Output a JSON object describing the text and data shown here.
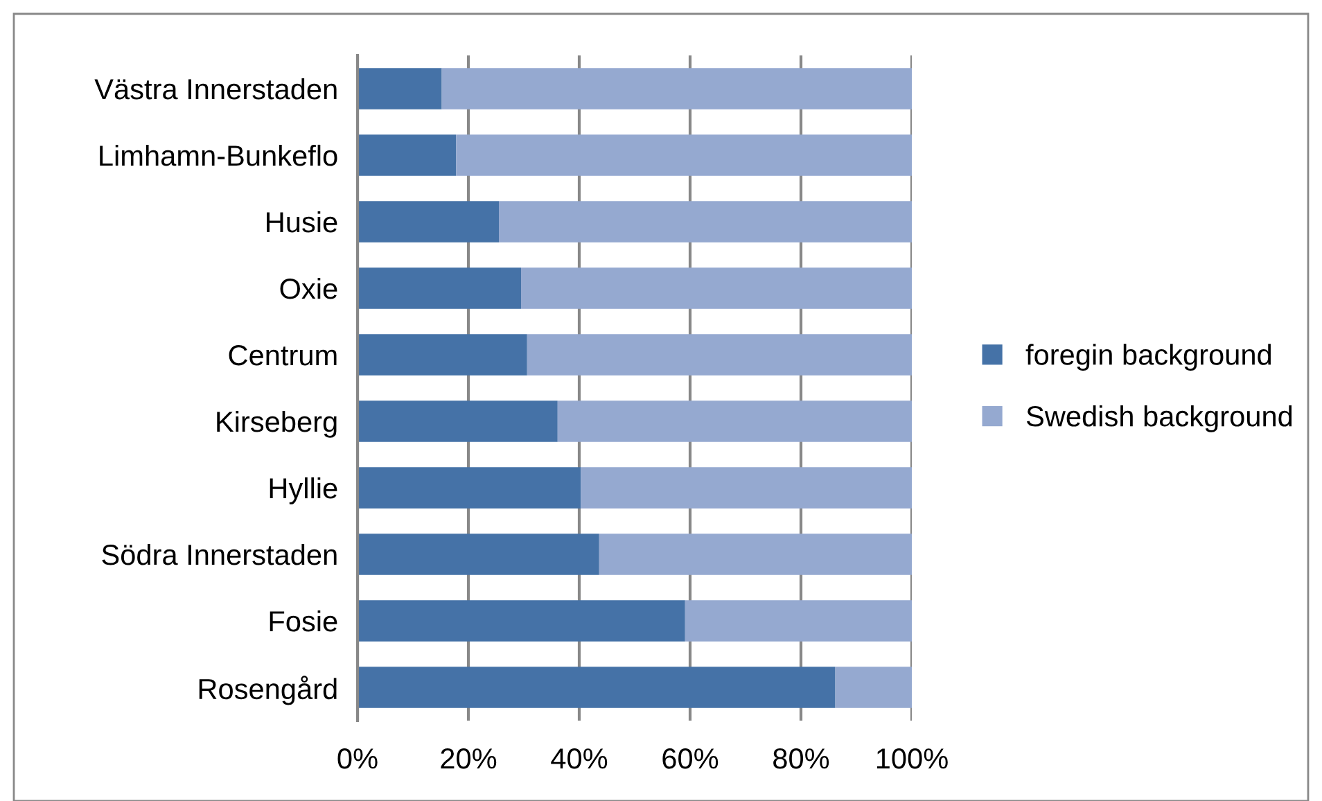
{
  "chart_data": {
    "type": "bar",
    "orientation": "horizontal",
    "stacked": true,
    "categories": [
      "Västra Innerstaden",
      "Limhamn-Bunkeflo",
      "Husie",
      "Oxie",
      "Centrum",
      "Kirseberg",
      "Hyllie",
      "Södra Innerstaden",
      "Fosie",
      "Rosengård"
    ],
    "series": [
      {
        "name": "foregin background",
        "color": "#4572a7",
        "values": [
          15.2,
          17.8,
          25.5,
          29.5,
          30.6,
          36.1,
          40.3,
          43.6,
          59.1,
          86.2
        ]
      },
      {
        "name": "Swedish background",
        "color": "#95a9d0",
        "values": [
          84.8,
          82.2,
          74.5,
          70.5,
          69.4,
          63.9,
          59.7,
          56.4,
          40.9,
          13.8
        ]
      }
    ],
    "xlim": [
      0,
      100
    ],
    "xticks": [
      {
        "value": 0,
        "label": "0%"
      },
      {
        "value": 20,
        "label": "20%"
      },
      {
        "value": 40,
        "label": "40%"
      },
      {
        "value": 60,
        "label": "60%"
      },
      {
        "value": 80,
        "label": "80%"
      },
      {
        "value": 100,
        "label": "100%"
      }
    ],
    "grid": "x",
    "legend": "right"
  }
}
